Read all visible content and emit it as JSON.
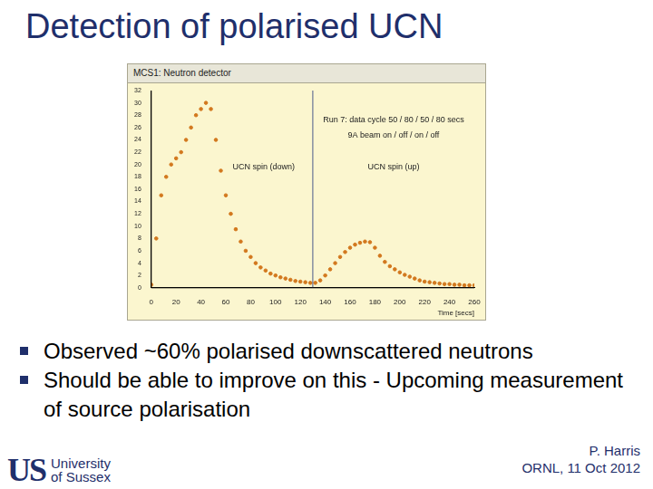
{
  "slide": {
    "title": "Detection of polarised UCN",
    "bullets": [
      "Observed ~60% polarised downscattered neutrons",
      "Should be able to improve on this - Upcoming measurement of source polarisation"
    ],
    "footer": [
      "P. Harris",
      "ORNL, 11 Oct 2012"
    ],
    "logo": {
      "mark": "US",
      "text": [
        "University",
        "of Sussex"
      ]
    }
  },
  "chart_data": {
    "type": "scatter",
    "title": "MCS1: Neutron detector",
    "x_label": "Time [secs]",
    "annotations": [
      "UCN spin (down)",
      "UCN spin (up)",
      "Run 7: data cycle 50 / 80 / 50 / 80 secs",
      "9A beam on / off / on / off"
    ],
    "divider_x": 130,
    "x": [
      0,
      4,
      8,
      12,
      16,
      20,
      24,
      28,
      32,
      36,
      40,
      44,
      48,
      52,
      56,
      60,
      64,
      68,
      72,
      76,
      80,
      84,
      88,
      92,
      96,
      100,
      104,
      108,
      112,
      116,
      120,
      124,
      128,
      132,
      136,
      140,
      144,
      148,
      152,
      156,
      160,
      164,
      168,
      172,
      176,
      180,
      184,
      188,
      192,
      196,
      200,
      204,
      208,
      212,
      216,
      220,
      224,
      228,
      232,
      236,
      240,
      244,
      248,
      252,
      256,
      260
    ],
    "values": [
      0.5,
      8,
      15,
      18,
      20,
      21,
      22,
      24,
      26,
      28,
      29,
      30,
      29,
      24,
      19,
      15,
      12,
      9.5,
      7.5,
      6,
      5,
      4,
      3.3,
      2.8,
      2.3,
      2,
      1.7,
      1.5,
      1.3,
      1.1,
      1,
      0.9,
      0.8,
      0.8,
      1.2,
      2,
      3,
      4,
      5,
      5.8,
      6.5,
      7,
      7.3,
      7.5,
      7.4,
      6.5,
      5.2,
      4.2,
      3.5,
      3,
      2.5,
      2.1,
      1.8,
      1.5,
      1.2,
      1,
      0.9,
      0.8,
      0.7,
      0.6,
      0.6,
      0.5,
      0.5,
      0.4,
      0.4,
      0.4
    ],
    "color": "#d2781e",
    "marker": "circle",
    "grid": false,
    "xlim": [
      0,
      260
    ],
    "xticks": [
      0,
      20,
      40,
      60,
      80,
      100,
      120,
      140,
      160,
      180,
      200,
      220,
      240,
      260
    ],
    "ylim": [
      0,
      32
    ],
    "yticks": [
      0,
      2,
      4,
      6,
      8,
      10,
      12,
      14,
      16,
      18,
      20,
      22,
      24,
      26,
      28,
      30,
      32
    ]
  }
}
